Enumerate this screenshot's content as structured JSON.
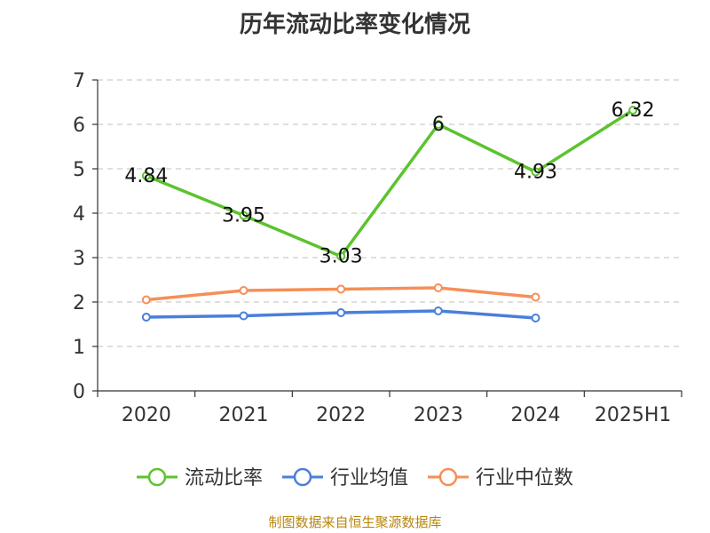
{
  "chart_data": {
    "type": "line",
    "title": "历年流动比率变化情况",
    "categories": [
      "2020",
      "2021",
      "2022",
      "2023",
      "2024",
      "2025H1"
    ],
    "ylim": [
      0,
      7
    ],
    "yticks": [
      "0",
      "1",
      "2",
      "3",
      "4",
      "5",
      "6",
      "7"
    ],
    "grid": true,
    "legend_position": "bottom",
    "series": [
      {
        "name": "流动比率",
        "color": "#5cc32e",
        "values": [
          4.84,
          3.95,
          3.03,
          6,
          4.93,
          6.32
        ],
        "labels": [
          "4.84",
          "3.95",
          "3.03",
          "6",
          "4.93",
          "6.32"
        ]
      },
      {
        "name": "行业均值",
        "color": "#4a7fdb",
        "values": [
          1.66,
          1.69,
          1.76,
          1.8,
          1.64,
          null
        ]
      },
      {
        "name": "行业中位数",
        "color": "#f58f58",
        "values": [
          2.05,
          2.26,
          2.29,
          2.32,
          2.11,
          null
        ]
      }
    ]
  },
  "source": "制图数据来自恒生聚源数据库"
}
